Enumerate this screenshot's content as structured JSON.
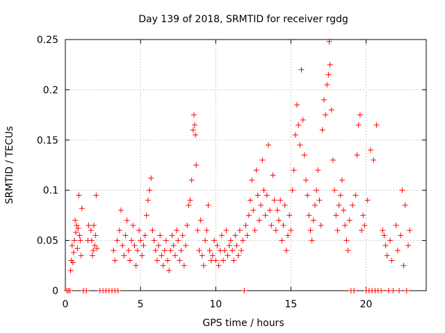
{
  "chart_data": {
    "type": "scatter",
    "title": "Day 139 of 2018, SRMTID for receiver rgdg",
    "xlabel": "GPS time / hours",
    "ylabel": "SRMTID / TECUs",
    "xlim": [
      0,
      24
    ],
    "ylim": [
      0,
      0.25
    ],
    "grid": true,
    "marker": "+",
    "color": "#ff0000",
    "xticks": [
      {
        "value": 0,
        "label": "0"
      },
      {
        "value": 5,
        "label": "5"
      },
      {
        "value": 10,
        "label": "10"
      },
      {
        "value": 15,
        "label": "15"
      },
      {
        "value": 20,
        "label": "20"
      }
    ],
    "yticks": [
      {
        "value": 0,
        "label": "0"
      },
      {
        "value": 0.05,
        "label": "0.05"
      },
      {
        "value": 0.1,
        "label": "0.1"
      },
      {
        "value": 0.15,
        "label": "0.15"
      },
      {
        "value": 0.2,
        "label": "0.2"
      },
      {
        "value": 0.25,
        "label": "0.25"
      }
    ],
    "series": [
      {
        "name": "SRMTID",
        "points": [
          [
            0.1,
            0
          ],
          [
            0.2,
            0
          ],
          [
            0.3,
            0
          ],
          [
            0.35,
            0.02
          ],
          [
            0.4,
            0.03
          ],
          [
            0.45,
            0.045
          ],
          [
            0.5,
            0.028
          ],
          [
            0.55,
            0.038
          ],
          [
            0.6,
            0.05
          ],
          [
            0.65,
            0.07
          ],
          [
            0.7,
            0.058
          ],
          [
            0.75,
            0.065
          ],
          [
            0.8,
            0.042
          ],
          [
            0.85,
            0.062
          ],
          [
            0.9,
            0.095
          ],
          [
            0.95,
            0.055
          ],
          [
            1.0,
            0.05
          ],
          [
            1.05,
            0.035
          ],
          [
            1.1,
            0.082
          ],
          [
            1.2,
            0
          ],
          [
            1.4,
            0
          ],
          [
            1.5,
            0.05
          ],
          [
            1.55,
            0.065
          ],
          [
            1.7,
            0.06
          ],
          [
            1.75,
            0.05
          ],
          [
            1.8,
            0.035
          ],
          [
            1.85,
            0.04
          ],
          [
            1.9,
            0.065
          ],
          [
            1.95,
            0.045
          ],
          [
            2.0,
            0.055
          ],
          [
            2.05,
            0.095
          ],
          [
            2.1,
            0.042
          ],
          [
            2.3,
            0
          ],
          [
            2.5,
            0
          ],
          [
            2.7,
            0
          ],
          [
            2.9,
            0
          ],
          [
            3.1,
            0
          ],
          [
            3.3,
            0
          ],
          [
            3.5,
            0
          ],
          [
            3.2,
            0.04
          ],
          [
            3.3,
            0.03
          ],
          [
            3.45,
            0.05
          ],
          [
            3.6,
            0.06
          ],
          [
            3.7,
            0.08
          ],
          [
            3.8,
            0.045
          ],
          [
            3.9,
            0.035
          ],
          [
            4.0,
            0.055
          ],
          [
            4.1,
            0.07
          ],
          [
            4.2,
            0.04
          ],
          [
            4.3,
            0.03
          ],
          [
            4.4,
            0.05
          ],
          [
            4.5,
            0.065
          ],
          [
            4.6,
            0.045
          ],
          [
            4.7,
            0.025
          ],
          [
            4.8,
            0.04
          ],
          [
            4.9,
            0.06
          ],
          [
            5.0,
            0.05
          ],
          [
            5.1,
            0.035
          ],
          [
            5.2,
            0.045
          ],
          [
            5.3,
            0.055
          ],
          [
            5.4,
            0.075
          ],
          [
            5.5,
            0.09
          ],
          [
            5.6,
            0.1
          ],
          [
            5.7,
            0.112
          ],
          [
            5.8,
            0.06
          ],
          [
            5.9,
            0.05
          ],
          [
            6.0,
            0.04
          ],
          [
            6.1,
            0.03
          ],
          [
            6.2,
            0.045
          ],
          [
            6.3,
            0.055
          ],
          [
            6.4,
            0.035
          ],
          [
            6.5,
            0.025
          ],
          [
            6.6,
            0.04
          ],
          [
            6.7,
            0.05
          ],
          [
            6.8,
            0.03
          ],
          [
            6.9,
            0.02
          ],
          [
            7.0,
            0.04
          ],
          [
            7.1,
            0.055
          ],
          [
            7.2,
            0.045
          ],
          [
            7.3,
            0.035
          ],
          [
            7.4,
            0.06
          ],
          [
            7.5,
            0.05
          ],
          [
            7.6,
            0.03
          ],
          [
            7.7,
            0.04
          ],
          [
            7.8,
            0.055
          ],
          [
            7.9,
            0.025
          ],
          [
            8.0,
            0.045
          ],
          [
            8.1,
            0.065
          ],
          [
            8.2,
            0.085
          ],
          [
            8.3,
            0.09
          ],
          [
            8.4,
            0.11
          ],
          [
            8.5,
            0.16
          ],
          [
            8.55,
            0.175
          ],
          [
            8.6,
            0.165
          ],
          [
            8.65,
            0.155
          ],
          [
            8.7,
            0.125
          ],
          [
            8.8,
            0.06
          ],
          [
            8.9,
            0.04
          ],
          [
            9.0,
            0.07
          ],
          [
            9.1,
            0.035
          ],
          [
            9.2,
            0.025
          ],
          [
            9.3,
            0.05
          ],
          [
            9.4,
            0.06
          ],
          [
            9.5,
            0.085
          ],
          [
            9.6,
            0.04
          ],
          [
            9.7,
            0.03
          ],
          [
            9.8,
            0.035
          ],
          [
            9.9,
            0.05
          ],
          [
            10.0,
            0.03
          ],
          [
            10.1,
            0.045
          ],
          [
            10.2,
            0.025
          ],
          [
            10.3,
            0.04
          ],
          [
            10.4,
            0.055
          ],
          [
            10.5,
            0.03
          ],
          [
            10.6,
            0.04
          ],
          [
            10.7,
            0.06
          ],
          [
            10.8,
            0.035
          ],
          [
            10.9,
            0.045
          ],
          [
            11.0,
            0.05
          ],
          [
            11.1,
            0.04
          ],
          [
            11.2,
            0.03
          ],
          [
            11.3,
            0.055
          ],
          [
            11.4,
            0.045
          ],
          [
            11.5,
            0.035
          ],
          [
            11.6,
            0.06
          ],
          [
            11.7,
            0.04
          ],
          [
            11.8,
            0.05
          ],
          [
            11.9,
            0
          ],
          [
            12.0,
            0.065
          ],
          [
            12.1,
            0.055
          ],
          [
            12.2,
            0.075
          ],
          [
            12.3,
            0.09
          ],
          [
            12.4,
            0.11
          ],
          [
            12.5,
            0.08
          ],
          [
            12.6,
            0.06
          ],
          [
            12.7,
            0.12
          ],
          [
            12.8,
            0.095
          ],
          [
            12.9,
            0.07
          ],
          [
            13.0,
            0.085
          ],
          [
            13.1,
            0.13
          ],
          [
            13.2,
            0.1
          ],
          [
            13.3,
            0.075
          ],
          [
            13.4,
            0.095
          ],
          [
            13.5,
            0.145
          ],
          [
            13.6,
            0.08
          ],
          [
            13.7,
            0.065
          ],
          [
            13.8,
            0.115
          ],
          [
            13.9,
            0.09
          ],
          [
            14.0,
            0.06
          ],
          [
            14.1,
            0.08
          ],
          [
            14.2,
            0.07
          ],
          [
            14.3,
            0.09
          ],
          [
            14.4,
            0.05
          ],
          [
            14.5,
            0.065
          ],
          [
            14.6,
            0.085
          ],
          [
            14.7,
            0.04
          ],
          [
            14.8,
            0.055
          ],
          [
            14.9,
            0.075
          ],
          [
            15.0,
            0.06
          ],
          [
            15.1,
            0.1
          ],
          [
            15.2,
            0.12
          ],
          [
            15.3,
            0.155
          ],
          [
            15.4,
            0.185
          ],
          [
            15.5,
            0.165
          ],
          [
            15.6,
            0.145
          ],
          [
            15.7,
            0.22
          ],
          [
            15.8,
            0.17
          ],
          [
            15.9,
            0.135
          ],
          [
            16.0,
            0.11
          ],
          [
            16.1,
            0.095
          ],
          [
            16.2,
            0.075
          ],
          [
            16.3,
            0.06
          ],
          [
            16.4,
            0.05
          ],
          [
            16.5,
            0.07
          ],
          [
            16.6,
            0.085
          ],
          [
            16.7,
            0.1
          ],
          [
            16.8,
            0.12
          ],
          [
            16.9,
            0.09
          ],
          [
            17.0,
            0.065
          ],
          [
            17.1,
            0.16
          ],
          [
            17.2,
            0.19
          ],
          [
            17.3,
            0.175
          ],
          [
            17.4,
            0.205
          ],
          [
            17.5,
            0.215
          ],
          [
            17.55,
            0.248
          ],
          [
            17.6,
            0.225
          ],
          [
            17.7,
            0.18
          ],
          [
            17.8,
            0.13
          ],
          [
            17.9,
            0.1
          ],
          [
            18.0,
            0.075
          ],
          [
            18.1,
            0.06
          ],
          [
            18.2,
            0.085
          ],
          [
            18.3,
            0.095
          ],
          [
            18.4,
            0.11
          ],
          [
            18.5,
            0.08
          ],
          [
            18.6,
            0.065
          ],
          [
            18.7,
            0.05
          ],
          [
            18.8,
            0.04
          ],
          [
            18.9,
            0.07
          ],
          [
            19.0,
            0
          ],
          [
            19.1,
            0.085
          ],
          [
            19.2,
            0
          ],
          [
            19.3,
            0.095
          ],
          [
            19.4,
            0.135
          ],
          [
            19.5,
            0.165
          ],
          [
            19.6,
            0.175
          ],
          [
            19.7,
            0.06
          ],
          [
            19.8,
            0.075
          ],
          [
            19.9,
            0.065
          ],
          [
            20.0,
            0
          ],
          [
            20.1,
            0.09
          ],
          [
            20.2,
            0
          ],
          [
            20.3,
            0.14
          ],
          [
            20.4,
            0
          ],
          [
            20.5,
            0.13
          ],
          [
            20.6,
            0
          ],
          [
            20.7,
            0.165
          ],
          [
            20.8,
            0
          ],
          [
            21.0,
            0
          ],
          [
            21.1,
            0.06
          ],
          [
            21.2,
            0.055
          ],
          [
            21.3,
            0.045
          ],
          [
            21.4,
            0.035
          ],
          [
            21.5,
            0
          ],
          [
            21.6,
            0.05
          ],
          [
            21.7,
            0.03
          ],
          [
            21.8,
            0
          ],
          [
            22.0,
            0.065
          ],
          [
            22.1,
            0.04
          ],
          [
            22.2,
            0
          ],
          [
            22.3,
            0.055
          ],
          [
            22.4,
            0.1
          ],
          [
            22.5,
            0.025
          ],
          [
            22.6,
            0.085
          ],
          [
            22.7,
            0
          ],
          [
            22.8,
            0.045
          ],
          [
            22.9,
            0.06
          ]
        ]
      }
    ]
  }
}
